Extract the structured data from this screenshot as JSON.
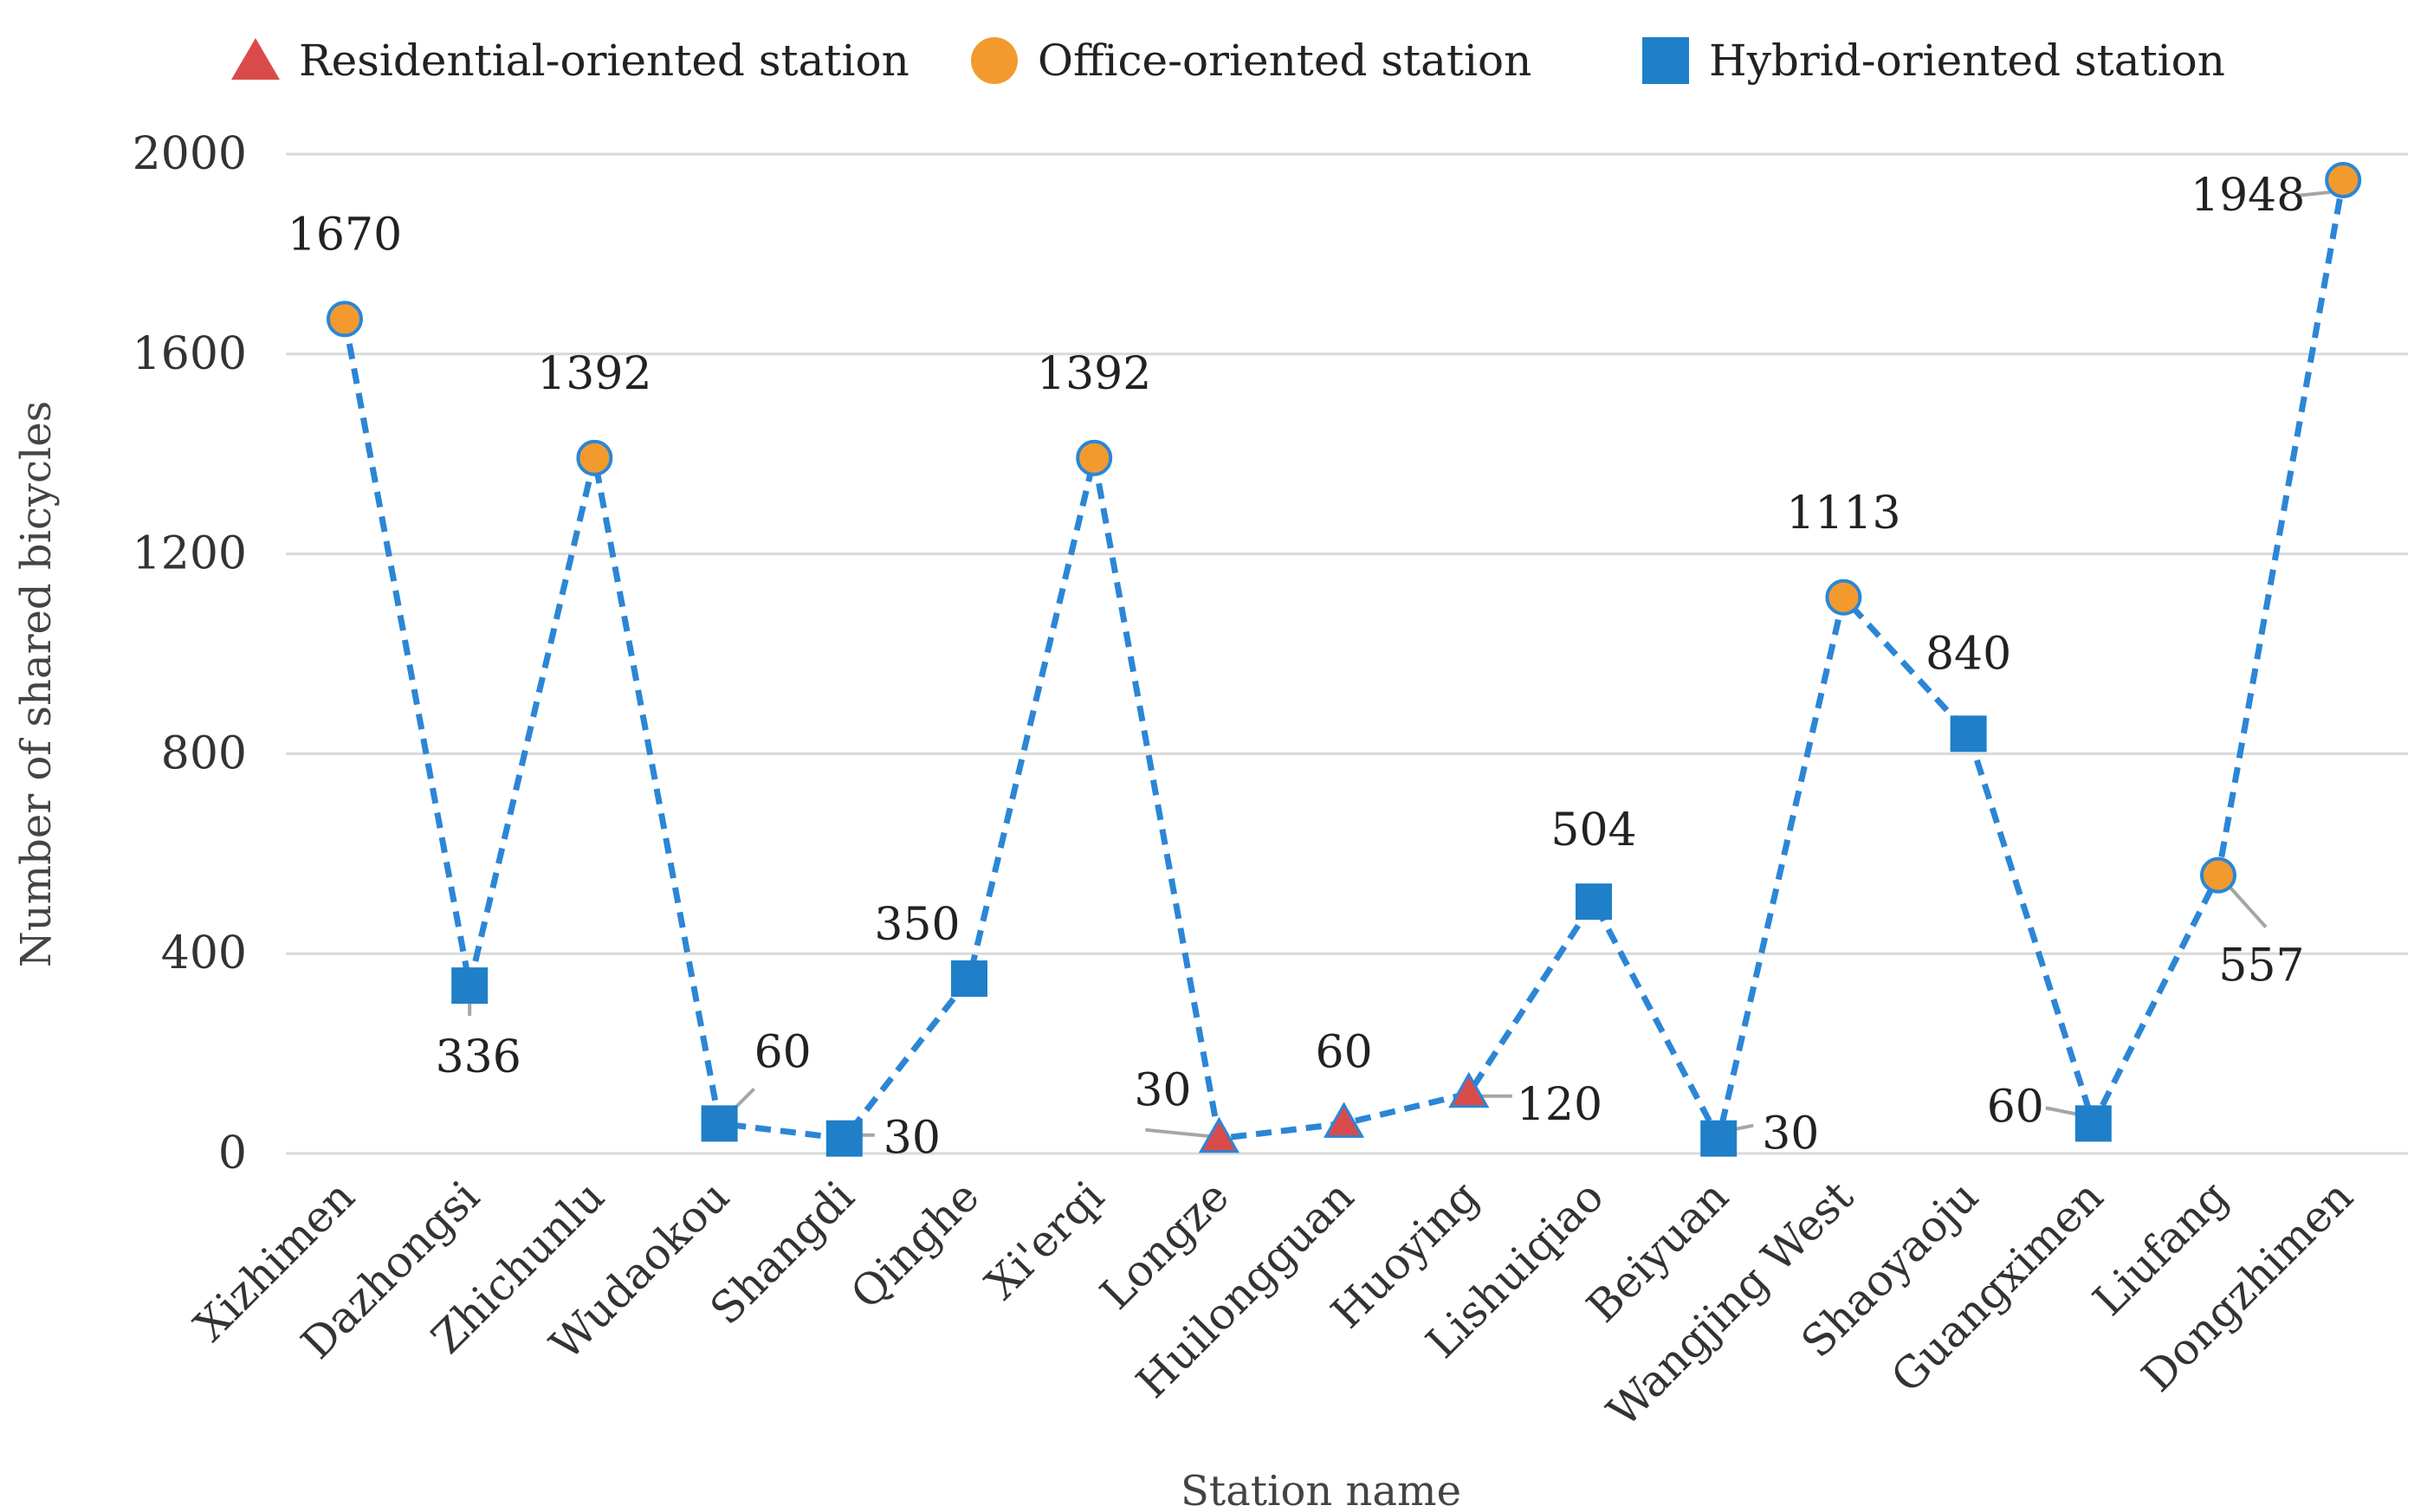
{
  "chart_data": {
    "type": "line",
    "title": "",
    "xlabel": "Station name",
    "ylabel": "Number of shared bicycles",
    "ylim": [
      0,
      2000
    ],
    "yticks": [
      "0",
      "400",
      "800",
      "1200",
      "1600",
      "2000"
    ],
    "grid": true,
    "legend_position": "top",
    "legend": [
      {
        "label": "Residential-oriented station",
        "marker": "triangle",
        "color": "#d94b4b"
      },
      {
        "label": "Office-oriented station",
        "marker": "circle",
        "color": "#f39a2e"
      },
      {
        "label": "Hybrid-oriented station",
        "marker": "square",
        "color": "#1f7fc8"
      }
    ],
    "line_color": "#2b86d6",
    "categories": [
      "Xizhimen",
      "Dazhongsi",
      "Zhichunlu",
      "Wudaokou",
      "Shangdi",
      "Qinghe",
      "Xi'erqi",
      "Longze",
      "Huilongguan",
      "Huoying",
      "Lishuiqiao",
      "Beiyuan",
      "Wangjing West",
      "Shaoyaoju",
      "Guangximen",
      "Liufang",
      "Dongzhimen"
    ],
    "values": [
      1670,
      336,
      1392,
      60,
      30,
      350,
      1392,
      30,
      60,
      120,
      504,
      30,
      1113,
      840,
      60,
      557,
      1948
    ],
    "station_types": [
      "office",
      "hybrid",
      "office",
      "hybrid",
      "hybrid",
      "hybrid",
      "office",
      "residential",
      "residential",
      "residential",
      "hybrid",
      "hybrid",
      "office",
      "hybrid",
      "hybrid",
      "office",
      "office"
    ],
    "data_labels": [
      "1670",
      "336",
      "1392",
      "60",
      "30",
      "350",
      "1392",
      "30",
      "60",
      "120",
      "504",
      "30",
      "1113",
      "840",
      "60",
      "557",
      "1948"
    ]
  }
}
